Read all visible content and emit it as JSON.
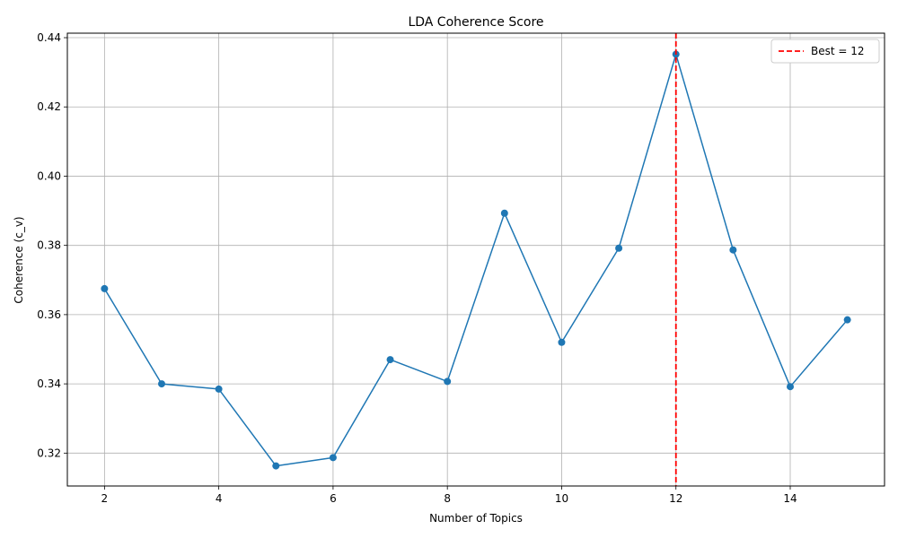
{
  "chart_data": {
    "type": "line",
    "title": "LDA Coherence Score",
    "xlabel": "Number of Topics",
    "ylabel": "Coherence (c_v)",
    "xlim": [
      1.35,
      15.65
    ],
    "ylim": [
      0.3105,
      0.4413
    ],
    "xticks": [
      2,
      4,
      6,
      8,
      10,
      12,
      14
    ],
    "xtick_labels": [
      "2",
      "4",
      "6",
      "8",
      "10",
      "12",
      "14"
    ],
    "yticks": [
      0.32,
      0.34,
      0.36,
      0.38,
      0.4,
      0.42,
      0.44
    ],
    "ytick_labels": [
      "0.32",
      "0.34",
      "0.36",
      "0.38",
      "0.40",
      "0.42",
      "0.44"
    ],
    "grid": true,
    "legend_position": "top-right",
    "series": [
      {
        "x": [
          2,
          3,
          4,
          5,
          6,
          7,
          8,
          9,
          10,
          11,
          12,
          13,
          14,
          15
        ],
        "y": [
          0.3675,
          0.34,
          0.3385,
          0.3163,
          0.3187,
          0.347,
          0.3407,
          0.3893,
          0.352,
          0.3792,
          0.4352,
          0.3787,
          0.3392,
          0.3585
        ],
        "color": "#1f77b4",
        "marker": "circle"
      }
    ],
    "annotations": [
      {
        "type": "vline",
        "x": 12,
        "label": "Best = 12",
        "color": "#ff0000",
        "style": "dashed"
      }
    ]
  }
}
